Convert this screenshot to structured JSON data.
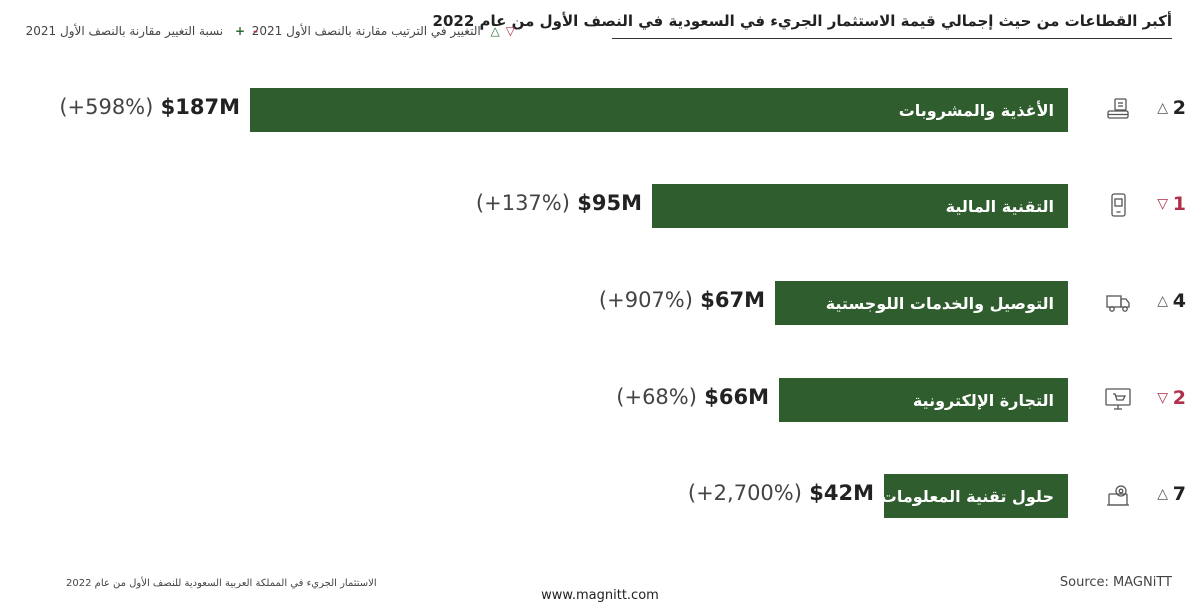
{
  "title": "أكبر القطاعات من حيث إجمالي قيمة الاستثمار الجريء في السعودية في النصف الأول من عام 2022",
  "legend": {
    "rank_change_label": "التغيير في الترتيب مقارنة بالنصف الأول 2021",
    "rank_up_symbol": "△",
    "rank_down_symbol": "▽",
    "pct_change_label": "نسبة التغيير مقارنة بالنصف الأول 2021",
    "plus_symbol": "+",
    "minus_symbol": "-"
  },
  "chart_data": {
    "type": "bar",
    "orientation": "horizontal",
    "categories": [
      "الأغذية والمشروبات",
      "التقنية المالية",
      "التوصيل والخدمات اللوجستية",
      "التجارة الإلكترونية",
      "حلول تقنية المعلومات"
    ],
    "values": [
      187,
      95,
      67,
      66,
      42
    ],
    "value_labels": [
      "$187M",
      "$95M",
      "$67M",
      "$66M",
      "$42M"
    ],
    "change_labels": [
      "(+598%)",
      "(+137%)",
      "(+907%)",
      "(+68%)",
      "(+2,700%)"
    ],
    "ranks": [
      "2",
      "1",
      "4",
      "2",
      "7"
    ],
    "rank_direction": [
      "up",
      "down",
      "up",
      "down",
      "up"
    ],
    "icons": [
      "food-beverage-icon",
      "fintech-icon",
      "delivery-truck-icon",
      "ecommerce-icon",
      "it-solutions-icon"
    ],
    "bar_color": "#2f5d2e",
    "up_color": "#2e6b35",
    "down_color": "#b0304a"
  },
  "footer": {
    "report": "الاستثمار الجريء في المملكة العربية السعودية للنصف الأول من عام 2022",
    "url": "www.magnitt.com",
    "source": "Source: MAGNiTT"
  }
}
